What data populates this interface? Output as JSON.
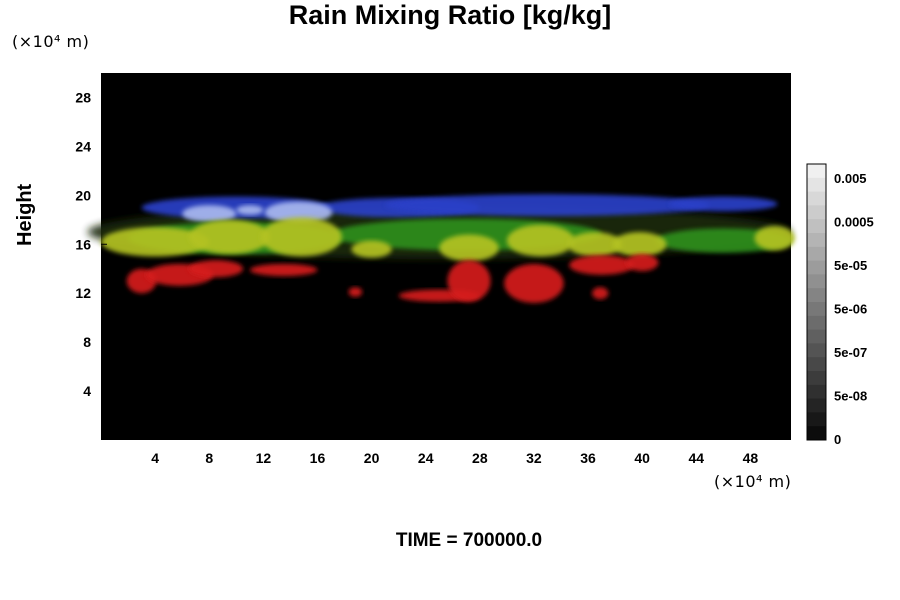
{
  "chart_data": {
    "type": "heatmap",
    "title": "Rain Mixing Ratio [kg/kg]",
    "xlabel": "",
    "ylabel": "Height",
    "x_unit": "(×10⁴ m)",
    "y_unit": "(×10⁴ m)",
    "x_ticks": [
      "4",
      "8",
      "12",
      "16",
      "20",
      "24",
      "28",
      "32",
      "36",
      "40",
      "44",
      "48"
    ],
    "y_ticks": [
      "4",
      "8",
      "12",
      "16",
      "20",
      "24",
      "28"
    ],
    "xlim": [
      0,
      51
    ],
    "ylim": [
      0,
      30
    ],
    "colorbar": {
      "labels": [
        "0.005",
        "0.0005",
        "5e-05",
        "5e-06",
        "5e-07",
        "5e-08",
        "0"
      ],
      "levels": 20,
      "scale": "grayscale"
    },
    "time": "TIME = 700000.0",
    "colors": {
      "background": "#000000",
      "red": "#d61f1f",
      "yellow_green": "#b3c224",
      "green": "#2f8f1f",
      "blue": "#2a3fc8",
      "light_blue": "#a9b8ee"
    }
  }
}
